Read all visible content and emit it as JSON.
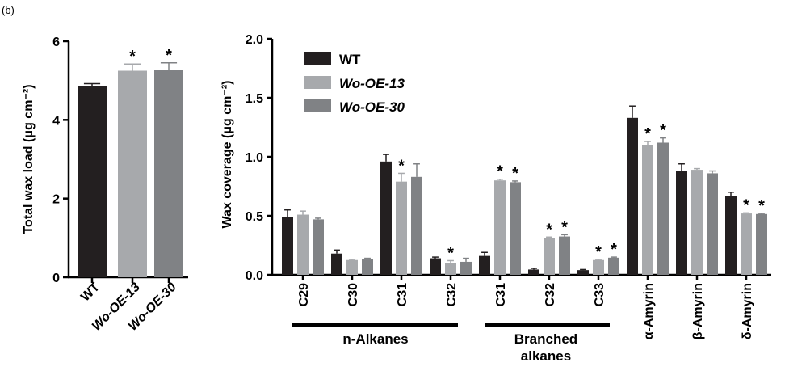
{
  "panel_label": "(b)",
  "colors": {
    "WT": "#231f20",
    "Wo-OE-13": "#a7a9ac",
    "Wo-OE-30": "#808285",
    "axis": "#000000"
  },
  "chart_data": [
    {
      "type": "bar",
      "ylabel": "Total wax load (μg cm⁻²)",
      "ylim": [
        0,
        6
      ],
      "yticks": [
        "0",
        "2",
        "4",
        "6"
      ],
      "categories": [
        "WT",
        "Wo-OE-13",
        "Wo-OE-30"
      ],
      "values": [
        4.87,
        5.25,
        5.27
      ],
      "errors": [
        0.05,
        0.17,
        0.18
      ],
      "significance": [
        "",
        "*",
        "*"
      ]
    },
    {
      "type": "bar",
      "ylabel": "Wax coverage (μg cm⁻²)",
      "ylim": [
        0,
        2.0
      ],
      "yticks": [
        "0.0",
        "0.5",
        "1.0",
        "1.5",
        "2.0"
      ],
      "categories": [
        "C29",
        "C30",
        "C31",
        "C32",
        "C31",
        "C32",
        "C33",
        "α-Amyrin",
        "β-Amyrin",
        "δ-Amyrin"
      ],
      "legend": {
        "placement": "top-left",
        "entries": [
          "WT",
          "Wo-OE-13",
          "Wo-OE-30"
        ]
      },
      "groups": [
        {
          "label": "n-Alkanes"
        },
        {
          "label_lines": [
            "Branched",
            "alkanes"
          ]
        }
      ],
      "series": [
        {
          "name": "WT",
          "values": [
            0.49,
            0.18,
            0.96,
            0.14,
            0.16,
            0.045,
            0.04,
            1.33,
            0.88,
            0.67
          ],
          "errors": [
            0.06,
            0.03,
            0.06,
            0.01,
            0.03,
            0.01,
            0.005,
            0.1,
            0.06,
            0.03
          ],
          "significance": [
            "",
            "",
            "",
            "",
            "",
            "",
            "",
            "",
            "",
            ""
          ]
        },
        {
          "name": "Wo-OE-13",
          "values": [
            0.51,
            0.125,
            0.79,
            0.1,
            0.8,
            0.31,
            0.125,
            1.1,
            0.89,
            0.52
          ],
          "errors": [
            0.03,
            0.005,
            0.07,
            0.02,
            0.01,
            0.01,
            0.005,
            0.03,
            0.01,
            0.005
          ],
          "significance": [
            "",
            "",
            "*",
            "*",
            "*",
            "*",
            "*",
            "*",
            "",
            "*"
          ]
        },
        {
          "name": "Wo-OE-30",
          "values": [
            0.47,
            0.13,
            0.83,
            0.11,
            0.785,
            0.325,
            0.145,
            1.12,
            0.86,
            0.515
          ],
          "errors": [
            0.01,
            0.01,
            0.11,
            0.03,
            0.01,
            0.015,
            0.005,
            0.04,
            0.02,
            0.005
          ],
          "significance": [
            "",
            "",
            "",
            "",
            "*",
            "*",
            "*",
            "*",
            "",
            "*"
          ]
        }
      ]
    }
  ]
}
